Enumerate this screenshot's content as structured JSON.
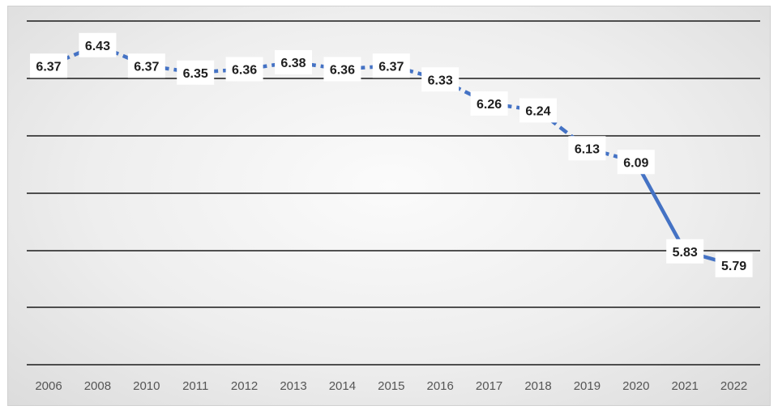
{
  "chart_data": {
    "type": "line",
    "title": "",
    "xlabel": "",
    "ylabel": "",
    "categories": [
      "2006",
      "2008",
      "2010",
      "2011",
      "2012",
      "2013",
      "2014",
      "2015",
      "2016",
      "2017",
      "2018",
      "2019",
      "2020",
      "2021",
      "2022"
    ],
    "series": [
      {
        "values": [
          6.37,
          6.43,
          6.37,
          6.35,
          6.36,
          6.38,
          6.36,
          6.37,
          6.33,
          6.26,
          6.24,
          6.13,
          6.09,
          5.83,
          5.79
        ],
        "labels": [
          "6.37",
          "6.43",
          "6.37",
          "6.35",
          "6.36",
          "6.38",
          "6.36",
          "6.37",
          "6.33",
          "6.26",
          "6.24",
          "6.13",
          "6.09",
          "5.83",
          "5.79"
        ],
        "color": "#4472C4",
        "dashed_until_index": 12
      }
    ],
    "ylim": [
      5.5,
      6.5
    ],
    "y_gridlines": [
      5.5,
      5.6,
      5.7,
      5.8,
      5.9,
      6.0,
      6.1,
      6.2,
      6.3,
      6.4,
      6.5
    ],
    "grid": true,
    "legend": "none",
    "gridline_color": "#1a1a1a",
    "data_label_background": "#ffffff"
  }
}
